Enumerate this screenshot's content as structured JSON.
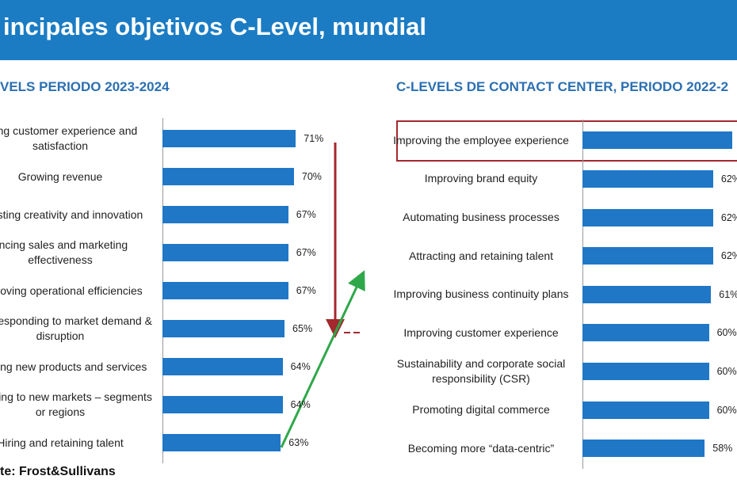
{
  "header": {
    "title": "incipales objetivos C-Level, mundial"
  },
  "source": "te: Frost&Sullivans",
  "chart_data": [
    {
      "type": "hbar",
      "title": "VELS PERIODO 2023-2024",
      "color": "#1f77c6",
      "xlim": [
        0,
        100
      ],
      "categories": [
        "oving customer experience and satisfaction",
        "Growing revenue",
        "Boosting creativity and innovation",
        "ancing sales and marketing effectiveness",
        "Improving operational efficiencies",
        "pidly responding to market demand & disruption",
        "unching new products and services",
        "xpanding to new markets – segments or regions",
        "Hiring and retaining talent"
      ],
      "values": [
        71,
        70,
        67,
        67,
        67,
        65,
        64,
        64,
        63
      ],
      "value_labels": [
        "71%",
        "70%",
        "67%",
        "67%",
        "67%",
        "65%",
        "64%",
        "64%",
        "63%"
      ]
    },
    {
      "type": "hbar",
      "title": "C-LEVELS DE CONTACT CENTER, PERIODO 2022-2",
      "color": "#1f77c6",
      "xlim": [
        0,
        100
      ],
      "categories": [
        "Improving the employee experience",
        "Improving brand equity",
        "Automating business processes",
        "Attracting and retaining talent",
        "Improving business continuity plans",
        "Improving customer experience",
        "Sustainability and corporate social responsibility (CSR)",
        "Promoting digital commerce",
        "Becoming more “data-centric”"
      ],
      "values": [
        71,
        62,
        62,
        62,
        61,
        60,
        60,
        60,
        58
      ],
      "value_labels": [
        null,
        "62%",
        "62%",
        "62%",
        "61%",
        "60%",
        "60%",
        "60%",
        "58%"
      ]
    }
  ]
}
